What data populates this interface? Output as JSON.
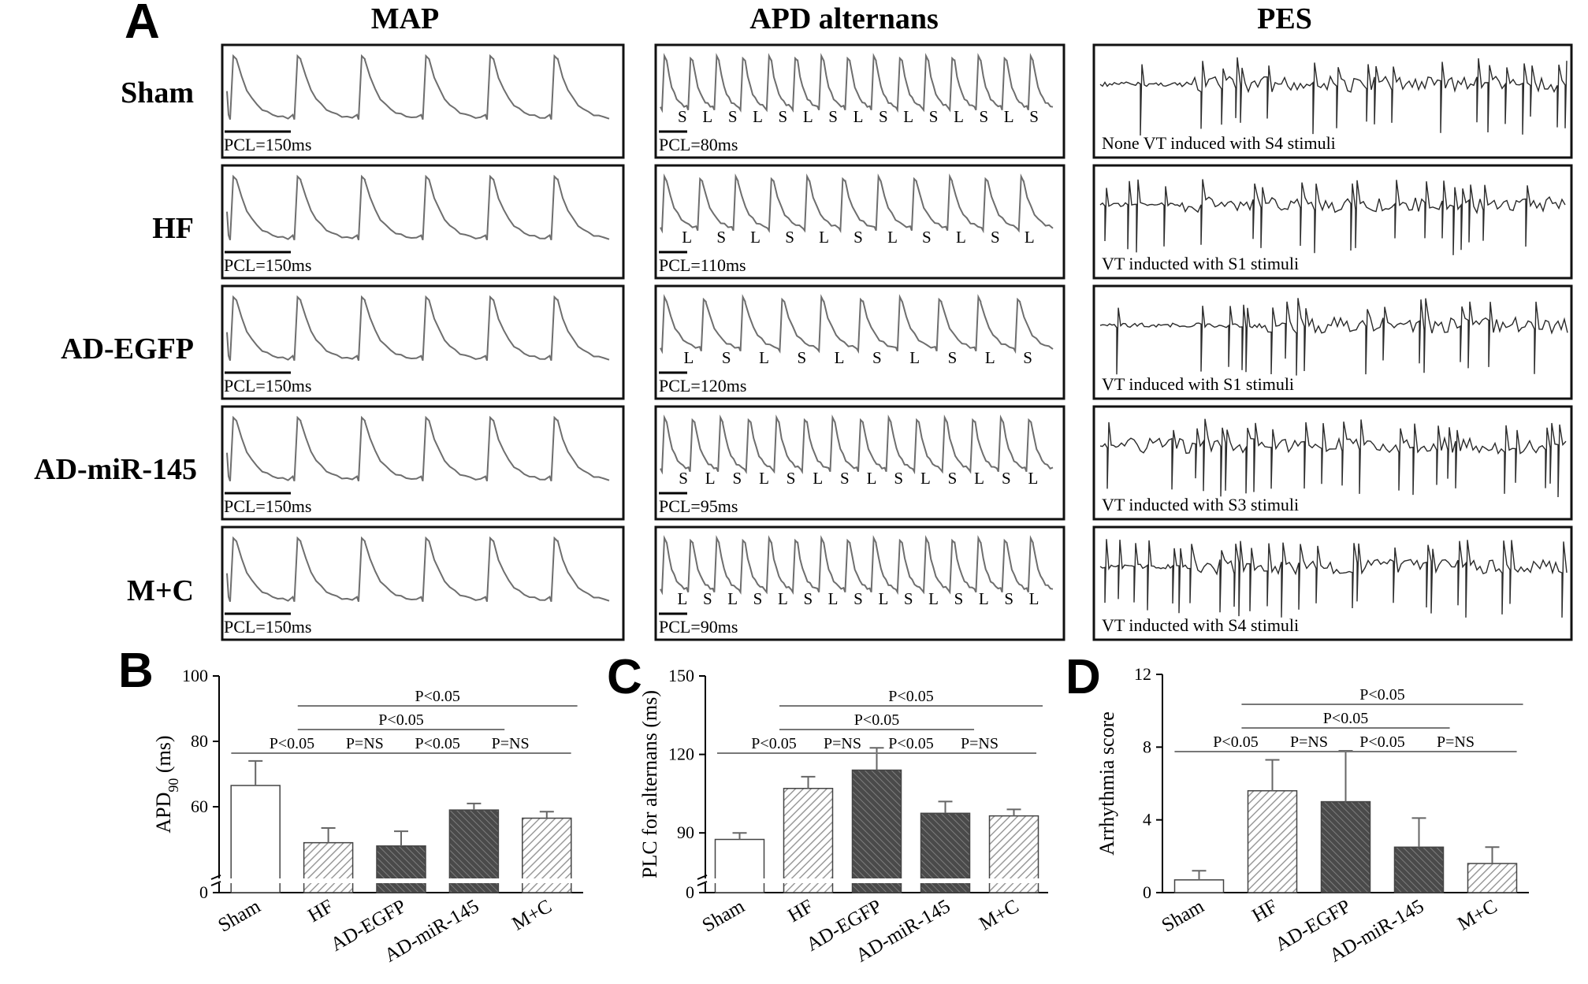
{
  "panel_letters": {
    "a": "A",
    "b": "B",
    "c": "C",
    "d": "D"
  },
  "columns": {
    "map": "MAP",
    "apd": "APD alternans",
    "pes": "PES"
  },
  "rows": [
    "Sham",
    "HF",
    "AD-EGFP",
    "AD-miR-145",
    "M+C"
  ],
  "map_captions": [
    "PCL=150ms",
    "PCL=150ms",
    "PCL=150ms",
    "PCL=150ms",
    "PCL=150ms"
  ],
  "apd_captions": [
    "PCL=80ms",
    "PCL=110ms",
    "PCL=120ms",
    "PCL=95ms",
    "PCL=90ms"
  ],
  "apd_labels": [
    [
      "S",
      "L",
      "S",
      "L",
      "S",
      "L",
      "S",
      "L",
      "S",
      "L",
      "S",
      "L",
      "S",
      "L",
      "S"
    ],
    [
      "L",
      "S",
      "L",
      "S",
      "L",
      "S",
      "L",
      "S",
      "L",
      "S",
      "L"
    ],
    [
      "L",
      "S",
      "L",
      "S",
      "L",
      "S",
      "L",
      "S",
      "L",
      "S"
    ],
    [
      "S",
      "L",
      "S",
      "L",
      "S",
      "L",
      "S",
      "L",
      "S",
      "L",
      "S",
      "L",
      "S",
      "L"
    ],
    [
      "L",
      "S",
      "L",
      "S",
      "L",
      "S",
      "L",
      "S",
      "L",
      "S",
      "L",
      "S",
      "L",
      "S",
      "L"
    ]
  ],
  "pes_captions": [
    "None VT induced with S4 stimuli",
    "VT inducted with S1 stimuli",
    "VT induced with S1 stimuli",
    "VT inducted with S3 stimuli",
    "VT inducted with S4 stimuli"
  ],
  "colors": {
    "trace": "#6e6e6e",
    "ecg": "#2a2a2a",
    "border": "#111111",
    "bar_light": "#b4b4b4",
    "bar_dark": "#5a5a5a"
  },
  "chart_data": [
    {
      "type": "bar",
      "ylabel": "APD90 (ms)",
      "ylabel_main": "APD",
      "ylabel_sub": "90",
      "ylabel_unit": " (ms)",
      "categories": [
        "Sham",
        "HF",
        "AD-EGFP",
        "AD-miR-145",
        "M+C"
      ],
      "values": [
        66.5,
        49,
        48,
        59,
        56.5
      ],
      "errors": [
        7.5,
        4.5,
        4.5,
        2,
        2
      ],
      "styles": [
        "open",
        "hatch-light",
        "hatch-dark",
        "hatch-dark",
        "hatch-light"
      ],
      "yticks": [
        "0",
        "60",
        "80",
        "100"
      ],
      "axis_break": true,
      "ylim": [
        40,
        100
      ],
      "significance": [
        {
          "from": 0,
          "to": 1,
          "label": "P<0.05"
        },
        {
          "from": 1,
          "to": 2,
          "label": "P=NS"
        },
        {
          "from": 2,
          "to": 3,
          "label": "P<0.05"
        },
        {
          "from": 3,
          "to": 4,
          "label": "P=NS"
        },
        {
          "from": 1,
          "to": 3,
          "label": "P<0.05"
        },
        {
          "from": 1,
          "to": 4,
          "label": "P<0.05"
        }
      ]
    },
    {
      "type": "bar",
      "ylabel": "PLC for alternans (ms)",
      "categories": [
        "Sham",
        "HF",
        "AD-EGFP",
        "AD-miR-145",
        "M+C"
      ],
      "values": [
        87.5,
        107,
        114,
        97.5,
        96.5
      ],
      "errors": [
        2.5,
        4.5,
        8.5,
        4.5,
        2.5
      ],
      "styles": [
        "open",
        "hatch-light",
        "hatch-dark",
        "hatch-dark",
        "hatch-light"
      ],
      "yticks": [
        "0",
        "90",
        "120",
        "150"
      ],
      "axis_break": true,
      "ylim": [
        75,
        150
      ],
      "significance": [
        {
          "from": 0,
          "to": 1,
          "label": "P<0.05"
        },
        {
          "from": 1,
          "to": 2,
          "label": "P=NS"
        },
        {
          "from": 2,
          "to": 3,
          "label": "P<0.05"
        },
        {
          "from": 3,
          "to": 4,
          "label": "P=NS"
        },
        {
          "from": 1,
          "to": 3,
          "label": "P<0.05"
        },
        {
          "from": 1,
          "to": 4,
          "label": "P<0.05"
        }
      ]
    },
    {
      "type": "bar",
      "ylabel": "Arrhythmia score",
      "categories": [
        "Sham",
        "HF",
        "AD-EGFP",
        "AD-miR-145",
        "M+C"
      ],
      "values": [
        0.7,
        5.6,
        5.0,
        2.5,
        1.6
      ],
      "errors": [
        0.5,
        1.7,
        2.8,
        1.6,
        0.9
      ],
      "styles": [
        "open",
        "hatch-light",
        "hatch-dark",
        "hatch-dark",
        "hatch-light"
      ],
      "yticks": [
        "0",
        "4",
        "8",
        "12"
      ],
      "axis_break": false,
      "ylim": [
        0,
        12
      ],
      "significance": [
        {
          "from": 0,
          "to": 1,
          "label": "P<0.05"
        },
        {
          "from": 1,
          "to": 2,
          "label": "P=NS"
        },
        {
          "from": 2,
          "to": 3,
          "label": "P<0.05"
        },
        {
          "from": 3,
          "to": 4,
          "label": "P=NS"
        },
        {
          "from": 1,
          "to": 3,
          "label": "P<0.05"
        },
        {
          "from": 1,
          "to": 4,
          "label": "P<0.05"
        }
      ]
    }
  ]
}
